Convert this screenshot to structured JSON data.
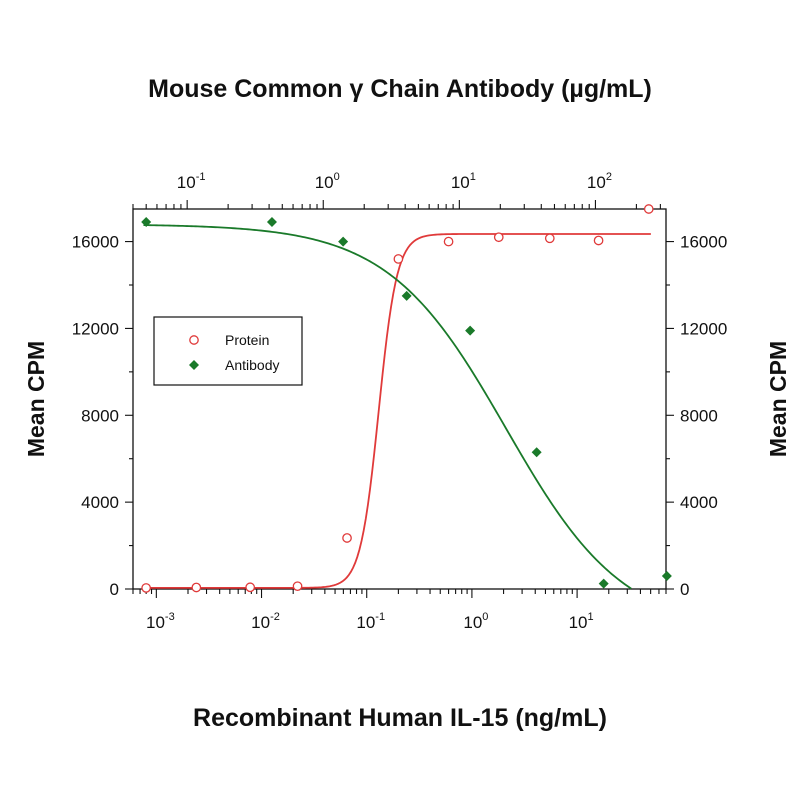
{
  "chart_data": {
    "type": "scatter",
    "title": "Mouse Common γ Chain Antibody (µg/mL)",
    "xlabel": "Recombinant Human IL-15 (ng/mL)",
    "ylabel": "Mean CPM",
    "ylabel_right": "Mean CPM",
    "x_scale": "log",
    "xlim": [
      0.0006,
      70
    ],
    "ylim": [
      0,
      17500
    ],
    "x_ticks": [
      {
        "base": "10",
        "exp": "-3",
        "value": 0.001
      },
      {
        "base": "10",
        "exp": "-2",
        "value": 0.01
      },
      {
        "base": "10",
        "exp": "-1",
        "value": 0.1
      },
      {
        "base": "10",
        "exp": "0",
        "value": 1
      },
      {
        "base": "10",
        "exp": "1",
        "value": 10
      }
    ],
    "top_axis": {
      "xlim": [
        0.04,
        330
      ],
      "ticks": [
        {
          "base": "10",
          "exp": "-1",
          "value": 0.1
        },
        {
          "base": "10",
          "exp": "0",
          "value": 1
        },
        {
          "base": "10",
          "exp": "1",
          "value": 10
        },
        {
          "base": "10",
          "exp": "2",
          "value": 100
        }
      ]
    },
    "y_ticks": [
      "0",
      "4000",
      "8000",
      "12000",
      "16000"
    ],
    "grid": false,
    "legend": {
      "position": "left-middle",
      "entries": [
        {
          "label": "Protein",
          "marker": "open-circle",
          "color": "#e03a3a"
        },
        {
          "label": "Antibody",
          "marker": "filled-diamond",
          "color": "#1a7a2a"
        }
      ]
    },
    "series": [
      {
        "name": "Protein",
        "axis": "bottom",
        "color": "#e03a3a",
        "marker": "open-circle",
        "points": [
          [
            0.0008,
            50
          ],
          [
            0.0024,
            70
          ],
          [
            0.0078,
            80
          ],
          [
            0.022,
            130
          ],
          [
            0.065,
            2350
          ],
          [
            0.2,
            15200
          ],
          [
            0.6,
            16000
          ],
          [
            1.8,
            16200
          ],
          [
            5.5,
            16150
          ],
          [
            16,
            16050
          ],
          [
            48,
            17500
          ]
        ],
        "fit": {
          "bottom": 50,
          "top": 16350,
          "ec50": 0.13,
          "hill": 5
        }
      },
      {
        "name": "Antibody",
        "axis": "top",
        "color": "#1a7a2a",
        "marker": "filled-diamond",
        "points": [
          [
            0.05,
            16900
          ],
          [
            0.42,
            16900
          ],
          [
            1.4,
            16000
          ],
          [
            4.1,
            13500
          ],
          [
            12,
            11900
          ],
          [
            37,
            6300
          ],
          [
            115,
            250
          ],
          [
            335,
            600
          ]
        ],
        "fit": {
          "bottom": -2000,
          "top": 16800,
          "ec50": 22,
          "hill": 1
        }
      }
    ]
  }
}
